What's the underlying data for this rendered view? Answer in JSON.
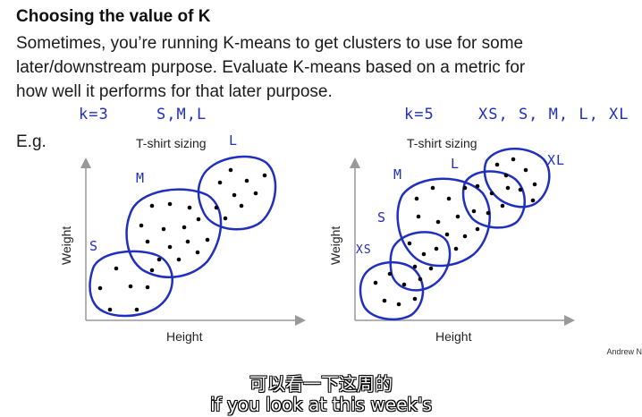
{
  "slide": {
    "title": "Choosing the value of K",
    "body_lines": [
      "Sometimes, you’re running K-means to get clusters to use for some",
      "later/downstream purpose. Evaluate K-means based on a metric for",
      "how well it performs for that later purpose."
    ],
    "eg": "E.g.",
    "annotations": {
      "left_k": "k=3",
      "left_sizes": "S,M,L",
      "right_k": "k=5",
      "right_sizes": "XS, S, M, L, XL"
    },
    "plots": [
      {
        "title": "T-shirt sizing",
        "xlabel": "Height",
        "ylabel": "Weight",
        "cluster_labels": [
          "S",
          "M",
          "L"
        ]
      },
      {
        "title": "T-shirt sizing",
        "xlabel": "Height",
        "ylabel": "Weight",
        "cluster_labels": [
          "XS",
          "S",
          "M",
          "L",
          "XL"
        ]
      }
    ],
    "credit": "Andrew N"
  },
  "subtitles": {
    "chinese": "可以看一下这周的",
    "english": "if you look at this week's"
  },
  "colors": {
    "ink": "#1f2fbf",
    "axis": "#999999",
    "points": "#000000"
  }
}
